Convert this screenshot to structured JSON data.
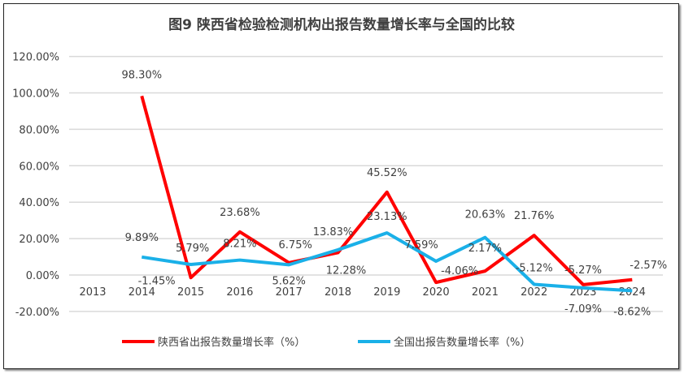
{
  "chart_data": {
    "type": "line",
    "title": "图9  陕西省检验检测机构出报告数量增长率与全国的比较",
    "categories": [
      "2013",
      "2014",
      "2015",
      "2016",
      "2017",
      "2018",
      "2019",
      "2020",
      "2021",
      "2022",
      "2023",
      "2024"
    ],
    "series": [
      {
        "name": "陕西省出报告数量增长率（%）",
        "color": "#ff0000",
        "values": [
          null,
          98.3,
          -1.45,
          23.68,
          6.75,
          12.28,
          45.52,
          -4.06,
          2.17,
          21.76,
          -5.27,
          -2.57
        ]
      },
      {
        "name": "全国出报告数量增长率（%）",
        "color": "#1ab0e8",
        "values": [
          null,
          9.89,
          5.79,
          8.21,
          5.62,
          13.83,
          23.13,
          7.59,
          20.63,
          -5.12,
          -7.09,
          -8.62
        ]
      }
    ],
    "ylim": [
      -20,
      120
    ],
    "yticks": [
      "-20.00%",
      "0.00%",
      "20.00%",
      "40.00%",
      "60.00%",
      "80.00%",
      "100.00%",
      "120.00%"
    ],
    "grid": true,
    "legend": "bottom"
  }
}
